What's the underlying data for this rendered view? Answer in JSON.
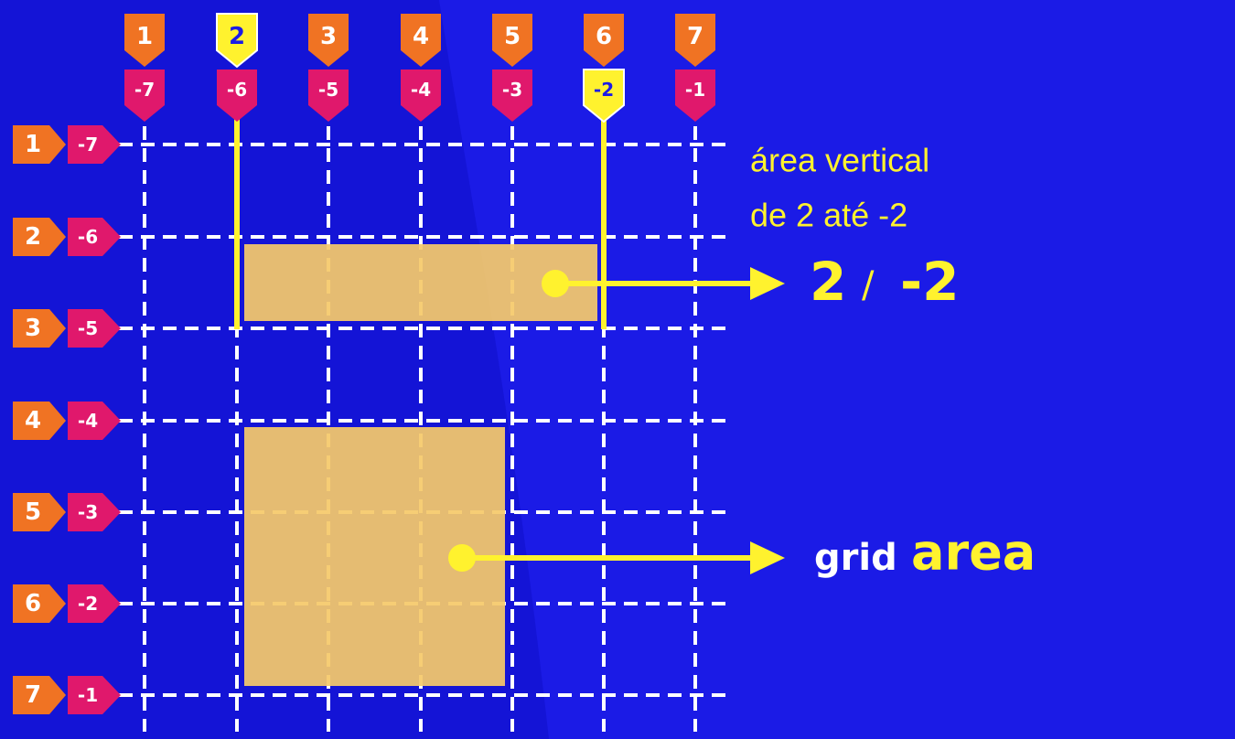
{
  "columns": {
    "positive": [
      "1",
      "2",
      "3",
      "4",
      "5",
      "6",
      "7"
    ],
    "negative": [
      "-7",
      "-6",
      "-5",
      "-4",
      "-3",
      "-2",
      "-1"
    ],
    "highlight_positive_index": 1,
    "highlight_negative_index": 5
  },
  "rows": {
    "positive": [
      "1",
      "2",
      "3",
      "4",
      "5",
      "6",
      "7"
    ],
    "negative": [
      "-7",
      "-6",
      "-5",
      "-4",
      "-3",
      "-2",
      "-1"
    ]
  },
  "annotations": {
    "vertical_area_line1": "área vertical",
    "vertical_area_line2": "de 2 até -2",
    "span_start": "2",
    "span_slash": "/",
    "span_end": "-2",
    "grid_word": "grid",
    "area_word": "area"
  },
  "colors": {
    "background": "#1b1be6",
    "orange": "#f07323",
    "magenta": "#e0186c",
    "yellow": "#fff22e",
    "area_fill": "#f5c96b",
    "grid_line": "#ffffff"
  }
}
